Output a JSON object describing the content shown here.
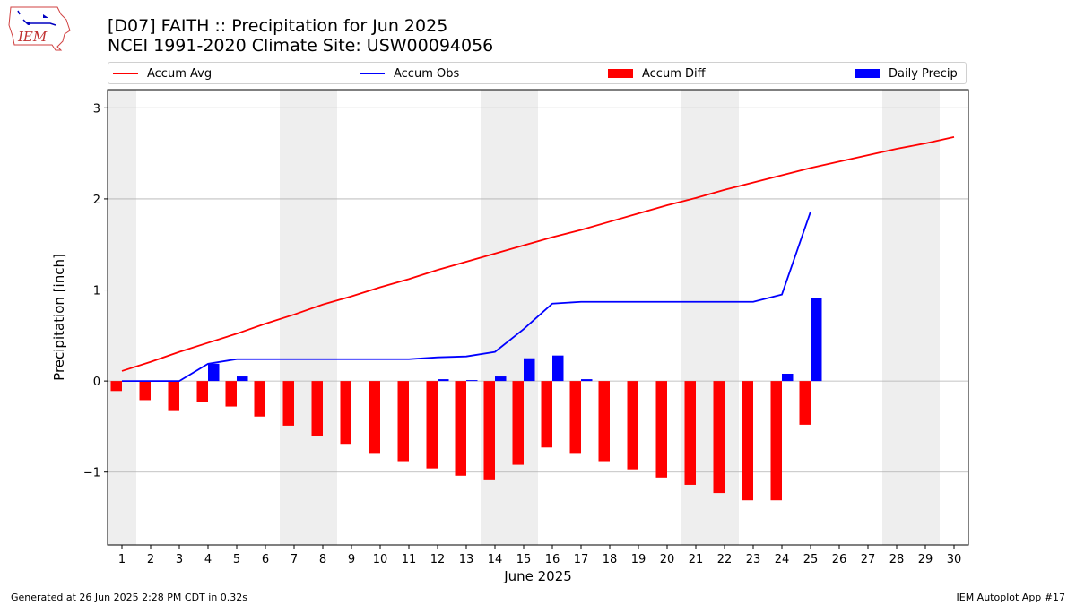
{
  "header": {
    "title_line1": "[D07] FAITH :: Precipitation for Jun 2025",
    "title_line2": "NCEI 1991-2020 Climate Site: USW00094056",
    "logo_text": "IEM"
  },
  "legend": {
    "accum_avg": "Accum Avg",
    "accum_obs": "Accum Obs",
    "accum_diff": "Accum Diff",
    "daily_precip": "Daily Precip"
  },
  "footer": {
    "generated": "Generated at 26 Jun 2025 2:28 PM CDT in 0.32s",
    "app": "IEM Autoplot App #17"
  },
  "colors": {
    "avg": "#ff0000",
    "obs": "#0000ff",
    "diff": "#ff0000",
    "daily": "#0000ff",
    "weekend_band": "#eeeeee",
    "grid": "#b0b0b0"
  },
  "chart_data": {
    "type": "bar",
    "title": "[D07] FAITH :: Precipitation for Jun 2025",
    "subtitle": "NCEI 1991-2020 Climate Site: USW00094056",
    "xlabel": "June 2025",
    "ylabel": "Precipitation [inch]",
    "ylim": [
      -1.8,
      3.2
    ],
    "yticks": [
      -1,
      0,
      1,
      2,
      3
    ],
    "ytick_labels": [
      "−1",
      "0",
      "1",
      "2",
      "3"
    ],
    "grid": "horizontal",
    "legend_position": "top",
    "days": [
      1,
      2,
      3,
      4,
      5,
      6,
      7,
      8,
      9,
      10,
      11,
      12,
      13,
      14,
      15,
      16,
      17,
      18,
      19,
      20,
      21,
      22,
      23,
      24,
      25,
      26,
      27,
      28,
      29,
      30
    ],
    "weekend_bands": [
      [
        1,
        1
      ],
      [
        7,
        8
      ],
      [
        14,
        15
      ],
      [
        21,
        22
      ],
      [
        28,
        29
      ]
    ],
    "series": [
      {
        "name": "Accum Avg",
        "type": "line",
        "values": [
          0.11,
          0.21,
          0.32,
          0.42,
          0.52,
          0.63,
          0.73,
          0.84,
          0.93,
          1.03,
          1.12,
          1.22,
          1.31,
          1.4,
          1.49,
          1.58,
          1.66,
          1.75,
          1.84,
          1.93,
          2.01,
          2.1,
          2.18,
          2.26,
          2.34,
          2.41,
          2.48,
          2.55,
          2.61,
          2.68
        ]
      },
      {
        "name": "Accum Obs",
        "type": "line",
        "values": [
          0.0,
          0.0,
          0.0,
          0.19,
          0.24,
          0.24,
          0.24,
          0.24,
          0.24,
          0.24,
          0.24,
          0.26,
          0.27,
          0.32,
          0.57,
          0.85,
          0.87,
          0.87,
          0.87,
          0.87,
          0.87,
          0.87,
          0.87,
          0.95,
          1.86
        ]
      },
      {
        "name": "Accum Diff",
        "type": "bar",
        "values": [
          -0.11,
          -0.21,
          -0.32,
          -0.23,
          -0.28,
          -0.39,
          -0.49,
          -0.6,
          -0.69,
          -0.79,
          -0.88,
          -0.96,
          -1.04,
          -1.08,
          -0.92,
          -0.73,
          -0.79,
          -0.88,
          -0.97,
          -1.06,
          -1.14,
          -1.23,
          -1.31,
          -1.31,
          -0.48
        ]
      },
      {
        "name": "Daily Precip",
        "type": "bar",
        "values": [
          0.0,
          0.0,
          0.0,
          0.19,
          0.05,
          0.0,
          0.0,
          0.0,
          0.0,
          0.0,
          0.0,
          0.02,
          0.01,
          0.05,
          0.25,
          0.28,
          0.02,
          0.0,
          0.0,
          0.0,
          0.0,
          0.0,
          0.0,
          0.08,
          0.91
        ]
      }
    ]
  }
}
